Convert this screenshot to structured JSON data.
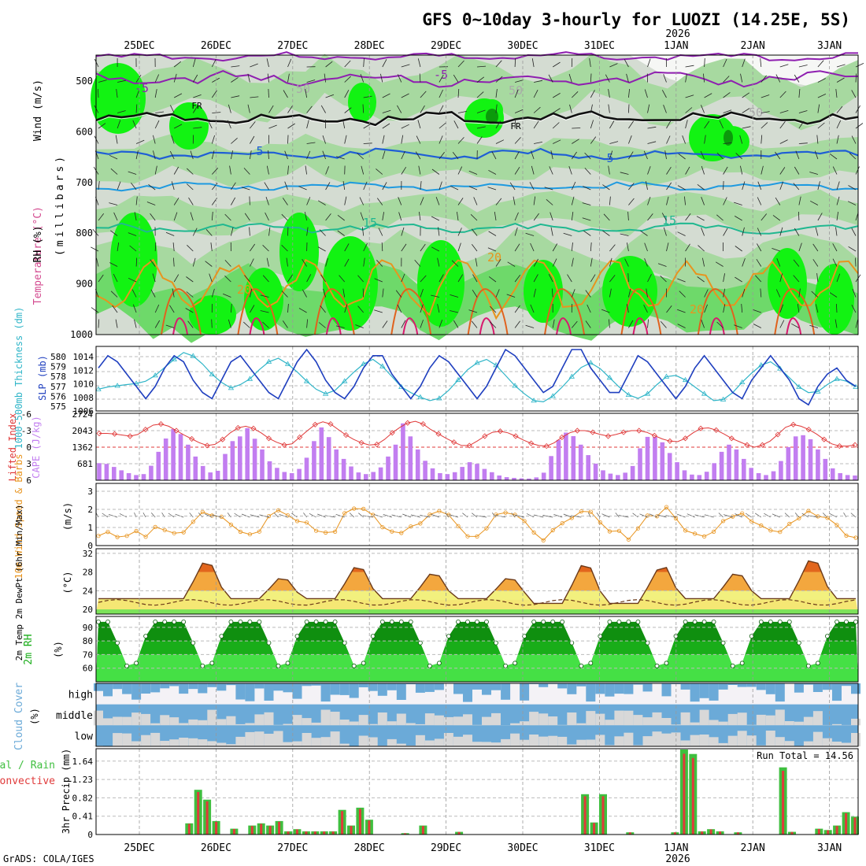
{
  "header": {
    "title": "GFS 0~10day 3-hourly for LUOZI (14.25E, 5S)",
    "year_label": "2026",
    "credit": "GrADS: COLA/IGES",
    "run_total": "Run Total = 14.56"
  },
  "time_axis": {
    "dates": [
      "25DEC",
      "26DEC",
      "27DEC",
      "28DEC",
      "29DEC",
      "30DEC",
      "31DEC",
      "1JAN",
      "2JAN",
      "3JAN"
    ],
    "year_under_date": "1JAN"
  },
  "colors": {
    "rh_light": "#d4dcd2",
    "rh_mid": "#a7d9a0",
    "rh_green": "#6ed96a",
    "rh_bright": "#12f312",
    "rh_dark": "#0b9a0b",
    "temp_minus5": "#8f1fb0",
    "temp_freeze": "#111111",
    "temp_5": "#1f5ed6",
    "temp_10": "#1e9ae0",
    "temp_15": "#20b890",
    "temp_20": "#e8941e",
    "temp_25": "#e0621e",
    "temp_30": "#d81a6e",
    "slp": "#1f3fbf",
    "thickness": "#2fb5c8",
    "lifted": "#e03838",
    "cape": "#c27ef0",
    "wind10": "#e8941e",
    "temp2m_hot": "#e2661d",
    "temp2m_warm": "#f3a73e",
    "temp2m_mild": "#f7dd6a",
    "temp2m_cool": "#f2f07e",
    "temp2m_base": "#7de35a",
    "rh2m_dark": "#0f8f0f",
    "rh2m_mid": "#19ad19",
    "rh2m_light": "#45e045",
    "cloud_blue": "#6baad8",
    "cloud_gray": "#d8d8d8",
    "precip_total": "#3fbf3f",
    "precip_conv": "#e03a3a"
  },
  "panels": {
    "sounding": {
      "ylabel_rh": "RH (%)",
      "ylabel_temp": "Temperature (°C)",
      "ylabel_wind": "Wind (m/s)",
      "ylabel_units": "(millibars)",
      "pressure_ticks": [
        "500",
        "600",
        "700",
        "800",
        "900",
        "1000"
      ],
      "contour_labels": [
        {
          "text": "-5",
          "level": "minus5"
        },
        {
          "text": "-5",
          "level": "minus5"
        },
        {
          "text": "5",
          "level": "5"
        },
        {
          "text": "5",
          "level": "5"
        },
        {
          "text": "15",
          "level": "15"
        },
        {
          "text": "15",
          "level": "15"
        },
        {
          "text": "20",
          "level": "20"
        },
        {
          "text": "20",
          "level": "20"
        },
        {
          "text": "20",
          "level": "20"
        },
        {
          "text": "FR",
          "level": "freeze"
        },
        {
          "text": "FR",
          "level": "freeze"
        },
        {
          "text": "50",
          "level": "rh"
        },
        {
          "text": "50",
          "level": "rh"
        },
        {
          "text": "50",
          "level": "rh"
        }
      ]
    },
    "slp": {
      "ylabel_left": "1000-500mb Thickness (dm)",
      "ylabel_right": "SLP (mb)",
      "thickness_ticks": [
        "575",
        "576",
        "577",
        "578",
        "579",
        "580"
      ],
      "slp_ticks": [
        "1006",
        "1008",
        "1010",
        "1012",
        "1014"
      ]
    },
    "lifted": {
      "ylabel_left": "Lifted Index",
      "ylabel_right": "CAPE (J/kg)",
      "li_ticks": [
        "-6",
        "-3",
        "0",
        "3",
        "6"
      ],
      "cape_ticks": [
        "681",
        "1362",
        "2043",
        "2724"
      ]
    },
    "wind10": {
      "ylabel": "10m Wind Speed & Barbs",
      "units": "(m/s)",
      "ticks": [
        "0",
        "1",
        "2",
        "3"
      ]
    },
    "temp2m": {
      "ylabel": "2m Temp 2m DewPt (6hr Min/Max)",
      "units": "(°C)",
      "ticks": [
        "20",
        "24",
        "28",
        "32"
      ]
    },
    "rh2m": {
      "ylabel": "2m RH",
      "units": "(%)",
      "ticks": [
        "60",
        "70",
        "80",
        "90"
      ]
    },
    "cloud": {
      "ylabel": "Cloud Cover",
      "units": "(%)",
      "levels": [
        "high",
        "middle",
        "low"
      ]
    },
    "precip": {
      "ylabel_total": "Total / Rain",
      "ylabel_conv": "Convective",
      "ylabel_units": "3hr Precip (mm)",
      "ticks": [
        "0",
        "0.41",
        "0.82",
        "1.23",
        "1.64"
      ]
    }
  },
  "chart_data": {
    "type": "line",
    "x_unit": "3-hourly steps from 24DEC 12Z",
    "slp": [
      1011,
      1013,
      1012,
      1010,
      1008,
      1006,
      1008,
      1011,
      1013,
      1012,
      1009,
      1007,
      1006,
      1009,
      1012,
      1013,
      1011,
      1009,
      1007,
      1006,
      1009,
      1012,
      1014,
      1012,
      1009,
      1007,
      1006,
      1008,
      1011,
      1013,
      1013,
      1010,
      1008,
      1006,
      1008,
      1011,
      1013,
      1012,
      1010,
      1008,
      1006,
      1008,
      1011,
      1014,
      1013,
      1011,
      1009,
      1007,
      1008,
      1011,
      1014,
      1014,
      1011,
      1009,
      1007,
      1007,
      1010,
      1013,
      1012,
      1010,
      1008,
      1006,
      1008,
      1011,
      1013,
      1011,
      1009,
      1007,
      1006,
      1009,
      1011,
      1013,
      1011,
      1009,
      1006,
      1005,
      1008,
      1010,
      1011,
      1009,
      1008
    ],
    "thickness": [
      576.4,
      576.6,
      576.7,
      576.8,
      576.9,
      577.1,
      577.6,
      578.3,
      579.0,
      579.6,
      579.3,
      578.6,
      577.7,
      577.0,
      576.5,
      576.8,
      577.3,
      578.1,
      578.8,
      579.1,
      578.6,
      577.9,
      577.1,
      576.4,
      576.0,
      576.3,
      577.1,
      577.9,
      578.6,
      579.0,
      578.4,
      577.5,
      576.6,
      576.1,
      575.7,
      575.4,
      575.6,
      576.3,
      577.2,
      578.1,
      578.7,
      579.0,
      578.5,
      577.6,
      576.7,
      576.0,
      575.4,
      575.3,
      575.8,
      576.6,
      577.5,
      578.3,
      578.7,
      578.2,
      577.4,
      576.6,
      575.9,
      575.6,
      576.0,
      576.8,
      577.5,
      577.6,
      577.2,
      576.6,
      576.0,
      575.4,
      575.5,
      576.1,
      577.0,
      577.8,
      578.5,
      578.8,
      578.2,
      577.4,
      576.6,
      576.1,
      576.2,
      576.8,
      577.3,
      577.1,
      576.6
    ],
    "lifted_index": [
      -2.5,
      -2.5,
      -2.4,
      -2.2,
      -2.0,
      -2.3,
      -3.2,
      -4.0,
      -4.2,
      -3.8,
      -3.0,
      -2.2,
      -1.5,
      -0.8,
      -0.3,
      -0.5,
      -1.4,
      -2.6,
      -3.5,
      -3.8,
      -3.4,
      -2.6,
      -1.6,
      -0.9,
      -0.4,
      -0.6,
      -1.8,
      -3.0,
      -4.1,
      -4.6,
      -4.2,
      -3.2,
      -2.2,
      -1.4,
      -0.8,
      -0.4,
      -0.5,
      -1.4,
      -2.6,
      -3.6,
      -4.4,
      -4.7,
      -4.2,
      -3.2,
      -2.4,
      -1.6,
      -0.9,
      -0.3,
      -0.3,
      -1.1,
      -2.0,
      -2.7,
      -2.9,
      -2.6,
      -2.0,
      -1.3,
      -0.7,
      -0.3,
      -0.2,
      -0.8,
      -1.8,
      -2.6,
      -3.0,
      -3.0,
      -2.7,
      -2.3,
      -2.0,
      -2.3,
      -2.7,
      -3.0,
      -3.0,
      -2.7,
      -2.1,
      -1.5,
      -1.1,
      -1.0,
      -1.6,
      -2.6,
      -3.4,
      -3.5,
      -3.1,
      -2.4,
      -1.6,
      -1.0,
      -0.4,
      0.0,
      -0.4,
      -1.1,
      -2.3,
      -3.6,
      -4.1,
      -3.8,
      -3.2,
      -2.4,
      -1.4,
      -0.6,
      -0.2,
      -0.2,
      -0.4
    ],
    "cape": [
      720,
      690,
      560,
      420,
      300,
      220,
      260,
      610,
      1200,
      1760,
      2160,
      1950,
      1500,
      1000,
      600,
      330,
      400,
      1110,
      1650,
      1850,
      2200,
      1750,
      1300,
      800,
      520,
      350,
      300,
      480,
      950,
      1650,
      2230,
      1820,
      1300,
      900,
      580,
      330,
      260,
      350,
      540,
      1000,
      1500,
      2400,
      1850,
      1300,
      820,
      500,
      300,
      260,
      340,
      560,
      760,
      690,
      480,
      340,
      200,
      130,
      100,
      80,
      70,
      120,
      320,
      1020,
      1700,
      2010,
      1860,
      1500,
      1060,
      700,
      420,
      280,
      220,
      320,
      600,
      1350,
      1830,
      1830,
      1600,
      1150,
      760,
      420,
      240,
      220,
      360,
      720,
      1200,
      1500,
      1300,
      900,
      520,
      300,
      220,
      380,
      810,
      1400,
      1850,
      1900,
      1730,
      1300,
      900,
      500,
      300,
      220,
      200
    ]
  }
}
